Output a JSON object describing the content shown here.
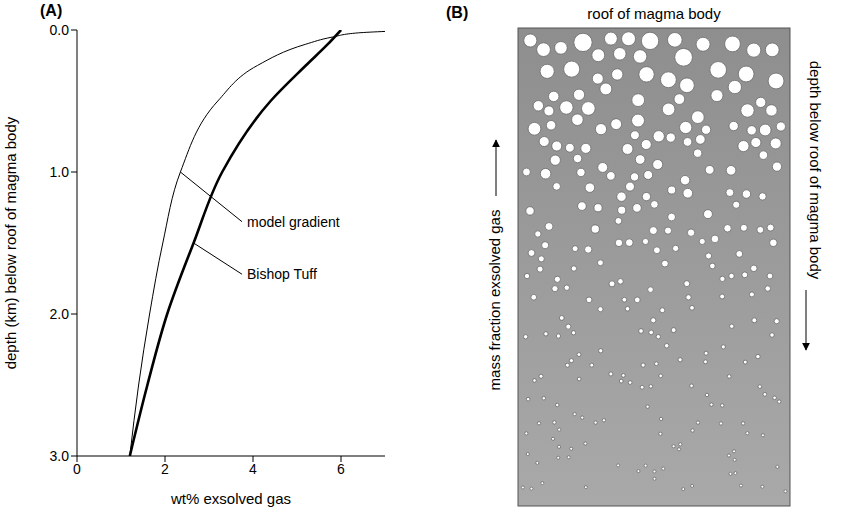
{
  "chart_data": {
    "type": "line",
    "panel": "(A)",
    "xlabel": "wt% exsolved gas",
    "ylabel": "depth (km) below roof of magma body",
    "xlim": [
      0,
      7
    ],
    "xticks": [
      0,
      2,
      4,
      6
    ],
    "ylim": [
      3,
      0
    ],
    "yticks": [
      {
        "value": 0,
        "label": "0.0"
      },
      {
        "value": 1,
        "label": "1.0"
      },
      {
        "value": 2,
        "label": "2.0"
      },
      {
        "value": 3,
        "label": "3.0"
      }
    ],
    "grid": false,
    "series": [
      {
        "name": "model gradient",
        "color": "#000000",
        "line_style": "solid",
        "x": [
          7.0,
          6.4,
          5.8,
          5.2,
          4.1,
          3.2,
          2.35,
          1.95,
          1.65,
          1.4,
          1.2
        ],
        "values": [
          0.01,
          0.02,
          0.05,
          0.1,
          0.25,
          0.5,
          1.0,
          1.5,
          2.0,
          2.5,
          3.0
        ]
      },
      {
        "name": "Bishop Tuff",
        "color": "#000000",
        "line_style": "solid",
        "x": [
          6.0,
          5.7,
          5.2,
          4.4,
          3.3,
          2.65,
          2.05,
          1.6,
          1.2
        ],
        "values": [
          0,
          0.1,
          0.25,
          0.5,
          1.0,
          1.5,
          2.0,
          2.5,
          3.0
        ]
      }
    ]
  },
  "diagram": {
    "panel": "(B)",
    "title": "roof of magma body",
    "left_label": "mass fraction exsolved gas",
    "right_label": "depth below roof of magma body"
  }
}
